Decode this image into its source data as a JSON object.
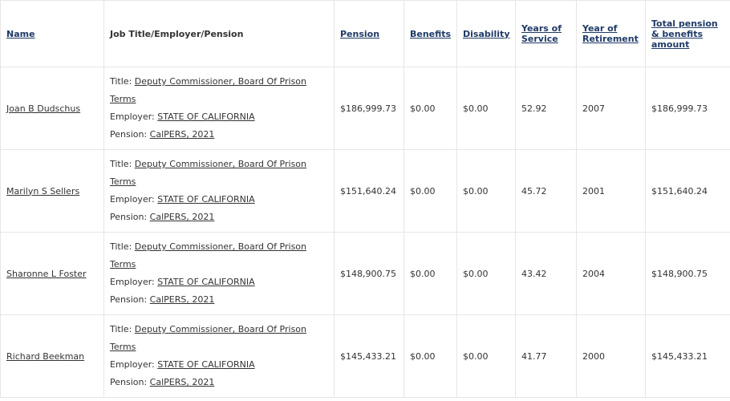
{
  "table": {
    "headers": [
      {
        "key": "name",
        "label": "Name",
        "link": true
      },
      {
        "key": "job",
        "label": "Job Title/Employer/Pension",
        "link": false
      },
      {
        "key": "pension",
        "label": "Pension",
        "link": true
      },
      {
        "key": "benefits",
        "label": "Benefits",
        "link": true
      },
      {
        "key": "disability",
        "label": "Disability",
        "link": true
      },
      {
        "key": "years_of_service",
        "label": "Years of Service",
        "link": true
      },
      {
        "key": "year_of_retirement",
        "label": "Year of Retirement",
        "link": true
      },
      {
        "key": "total",
        "label": "Total pension & benefits amount",
        "link": true
      }
    ],
    "prefixes": {
      "title": "Title: ",
      "employer": "Employer: ",
      "pension": "Pension: "
    },
    "rows": [
      {
        "name": "Joan B Dudschus",
        "title": "Deputy Commissioner, Board Of Prison Terms",
        "employer": "STATE OF CALIFORNIA",
        "pension_plan": "CalPERS, 2021",
        "pension": "$186,999.73",
        "benefits": "$0.00",
        "disability": "$0.00",
        "years_of_service": "52.92",
        "year_of_retirement": "2007",
        "total": "$186,999.73"
      },
      {
        "name": "Marilyn S Sellers",
        "title": "Deputy Commissioner, Board Of Prison Terms",
        "employer": "STATE OF CALIFORNIA",
        "pension_plan": "CalPERS, 2021",
        "pension": "$151,640.24",
        "benefits": "$0.00",
        "disability": "$0.00",
        "years_of_service": "45.72",
        "year_of_retirement": "2001",
        "total": "$151,640.24"
      },
      {
        "name": "Sharonne L Foster",
        "title": "Deputy Commissioner, Board Of Prison Terms",
        "employer": "STATE OF CALIFORNIA",
        "pension_plan": "CalPERS, 2021",
        "pension": "$148,900.75",
        "benefits": "$0.00",
        "disability": "$0.00",
        "years_of_service": "43.42",
        "year_of_retirement": "2004",
        "total": "$148,900.75"
      },
      {
        "name": "Richard Beekman",
        "title": "Deputy Commissioner, Board Of Prison Terms",
        "employer": "STATE OF CALIFORNIA",
        "pension_plan": "CalPERS, 2021",
        "pension": "$145,433.21",
        "benefits": "$0.00",
        "disability": "$0.00",
        "years_of_service": "41.77",
        "year_of_retirement": "2000",
        "total": "$145,433.21"
      }
    ]
  }
}
